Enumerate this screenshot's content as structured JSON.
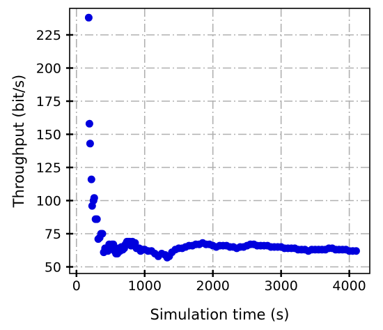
{
  "chart_data": {
    "type": "scatter",
    "title": "",
    "xlabel": "Simulation time (s)",
    "ylabel": "Throughput (bit/s)",
    "xlim": [
      -100,
      4300
    ],
    "ylim": [
      45,
      245
    ],
    "xticks": [
      0,
      1000,
      2000,
      3000,
      4000
    ],
    "yticks": [
      50,
      75,
      100,
      125,
      150,
      175,
      200,
      225
    ],
    "xtick_labels": [
      "0",
      "1000",
      "2000",
      "3000",
      "4000"
    ],
    "ytick_labels": [
      "50",
      "75",
      "100",
      "125",
      "150",
      "175",
      "200",
      "225"
    ],
    "grid": true,
    "legend": "none",
    "marker_color": "#0000dd",
    "series": [
      {
        "x": [
          180,
          190,
          200,
          220,
          230,
          250,
          260,
          280,
          300,
          320,
          340,
          360,
          380,
          400,
          420,
          440,
          460,
          480,
          500,
          520,
          540,
          560,
          580,
          600,
          620,
          640,
          660,
          680,
          700,
          720,
          740,
          760,
          780,
          800,
          820,
          840,
          860,
          880,
          900,
          920,
          940,
          960,
          980,
          1000,
          1050,
          1100,
          1150,
          1200,
          1250,
          1300,
          1330,
          1360,
          1400,
          1450,
          1500,
          1550,
          1600,
          1650,
          1700,
          1750,
          1800,
          1850,
          1900,
          1950,
          2000,
          2050,
          2100,
          2150,
          2200,
          2250,
          2300,
          2350,
          2400,
          2450,
          2500,
          2550,
          2600,
          2650,
          2700,
          2750,
          2800,
          2850,
          2900,
          2950,
          3000,
          3050,
          3100,
          3150,
          3200,
          3250,
          3300,
          3350,
          3400,
          3450,
          3500,
          3550,
          3600,
          3650,
          3700,
          3750,
          3800,
          3850,
          3900,
          3950,
          4000,
          4050,
          4100
        ],
        "y": [
          238,
          158,
          143,
          116,
          96,
          100,
          102,
          86,
          86,
          71,
          72,
          75,
          75,
          61,
          64,
          64,
          62,
          67,
          66,
          67,
          67,
          62,
          60,
          60,
          64,
          62,
          65,
          63,
          64,
          67,
          69,
          69,
          69,
          66,
          69,
          68,
          68,
          64,
          64,
          64,
          62,
          63,
          63,
          63,
          62,
          62,
          60,
          58,
          60,
          59,
          57,
          58,
          61,
          63,
          64,
          64,
          65,
          66,
          66,
          67,
          67,
          68,
          67,
          67,
          66,
          65,
          66,
          66,
          66,
          65,
          65,
          64,
          65,
          65,
          66,
          67,
          67,
          66,
          66,
          66,
          66,
          65,
          65,
          65,
          65,
          64,
          64,
          64,
          64,
          63,
          63,
          63,
          62,
          63,
          63,
          63,
          63,
          63,
          64,
          64,
          63,
          63,
          63,
          63,
          62,
          62,
          62
        ]
      }
    ]
  }
}
